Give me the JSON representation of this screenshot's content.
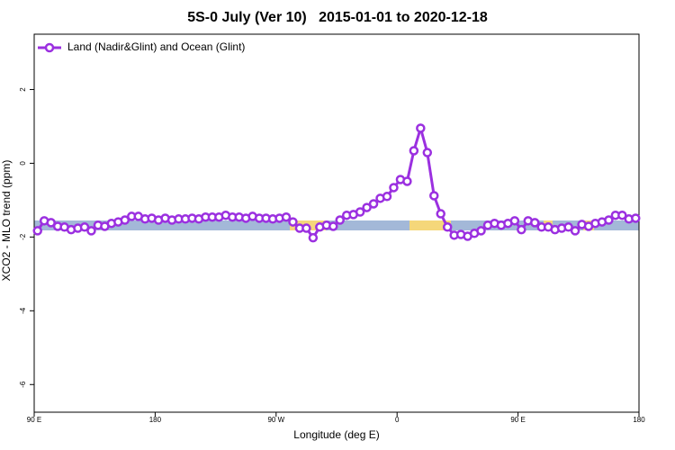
{
  "chart_data": {
    "type": "line",
    "title": "5S-0 July (Ver 10)   2015-01-01 to 2020-12-18",
    "x_label": "Longitude (deg E)",
    "y_label": "XCO2 - MLO trend (ppm)",
    "xlim": [
      90,
      540
    ],
    "ylim": [
      -6.75,
      3.5
    ],
    "xticks": [
      {
        "value": 90,
        "label": "90 E"
      },
      180,
      {
        "value": 270,
        "label": "90 W"
      },
      {
        "value": 360,
        "label": "0"
      },
      {
        "value": 450,
        "label": "90 E"
      },
      {
        "value": 540,
        "label": "180"
      }
    ],
    "yticks": [
      -6,
      -4,
      -2,
      0,
      2
    ],
    "legend": "top-left",
    "x": [
      92.5,
      97.5,
      102.5,
      107.5,
      112.5,
      117.5,
      122.5,
      127.5,
      132.5,
      137.5,
      142.5,
      147.5,
      152.5,
      157.5,
      162.5,
      167.5,
      172.5,
      177.5,
      182.5,
      187.5,
      192.5,
      197.5,
      202.5,
      207.5,
      212.5,
      217.5,
      222.5,
      227.5,
      232.5,
      237.5,
      242.5,
      247.5,
      252.5,
      257.5,
      262.5,
      267.5,
      272.5,
      277.5,
      282.5,
      287.5,
      292.5,
      297.5,
      302.5,
      307.5,
      312.5,
      317.5,
      322.5,
      327.5,
      332.5,
      337.5,
      342.5,
      347.5,
      352.5,
      357.5,
      362.5,
      367.5,
      372.5,
      377.5,
      382.5,
      387.5,
      392.5,
      397.5,
      402.5,
      407.5,
      412.5,
      417.5,
      422.5,
      427.5,
      432.5,
      437.5,
      442.5,
      447.5,
      452.5,
      457.5,
      462.5,
      467.5,
      472.5,
      477.5,
      482.5,
      487.5,
      492.5,
      497.5,
      502.5,
      507.5,
      512.5,
      517.5,
      522.5,
      527.5,
      532.5,
      537.5
    ],
    "series": [
      {
        "name": "Land (Nadir&Glint) and Ocean (Glint)",
        "color": "#9b30e0",
        "values": [
          -1.83,
          -1.56,
          -1.61,
          -1.71,
          -1.73,
          -1.8,
          -1.76,
          -1.73,
          -1.83,
          -1.68,
          -1.71,
          -1.63,
          -1.59,
          -1.54,
          -1.44,
          -1.44,
          -1.51,
          -1.49,
          -1.54,
          -1.49,
          -1.54,
          -1.51,
          -1.51,
          -1.49,
          -1.51,
          -1.46,
          -1.46,
          -1.46,
          -1.41,
          -1.46,
          -1.46,
          -1.49,
          -1.44,
          -1.49,
          -1.49,
          -1.51,
          -1.49,
          -1.46,
          -1.59,
          -1.76,
          -1.76,
          -2.02,
          -1.73,
          -1.68,
          -1.71,
          -1.54,
          -1.41,
          -1.39,
          -1.32,
          -1.2,
          -1.1,
          -0.95,
          -0.9,
          -0.66,
          -0.44,
          -0.49,
          0.34,
          0.95,
          0.29,
          -0.88,
          -1.37,
          -1.73,
          -1.95,
          -1.93,
          -1.98,
          -1.9,
          -1.83,
          -1.68,
          -1.63,
          -1.68,
          -1.63,
          -1.56,
          -1.8,
          -1.56,
          -1.61,
          -1.73,
          -1.73,
          -1.8,
          -1.76,
          -1.73,
          -1.83,
          -1.66,
          -1.71,
          -1.63,
          -1.59,
          -1.54,
          -1.41,
          -1.41,
          -1.51,
          -1.49
        ]
      }
    ]
  }
}
